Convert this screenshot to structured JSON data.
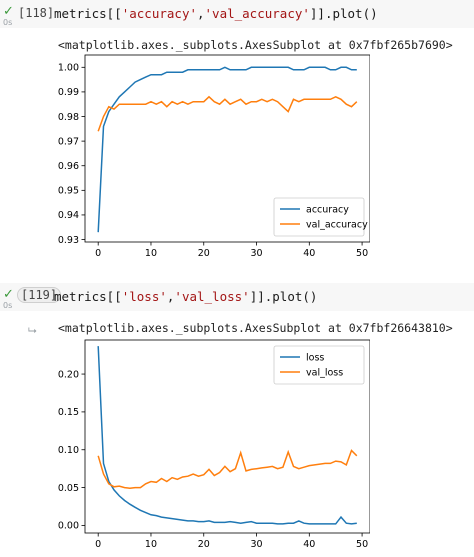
{
  "cells": [
    {
      "status_icon": "check-icon",
      "runtime": "0s",
      "exec_count": "[118]",
      "code_parts": [
        "metrics[[",
        "'accuracy'",
        ",",
        "'val_accuracy'",
        "]].plot()"
      ],
      "output_text": "<matplotlib.axes._subplots.AxesSubplot at 0x7fbf265b7690>"
    },
    {
      "status_icon": "check-icon",
      "runtime": "0s",
      "exec_count": "[119]",
      "code_parts": [
        "metrics[[",
        "'loss'",
        ",",
        "'val_loss'",
        "]].plot()"
      ],
      "output_icon": "output-arrow-icon",
      "output_text": "<matplotlib.axes._subplots.AxesSubplot at 0x7fbf26643810>"
    }
  ],
  "colors": {
    "series1": "#1f77b4",
    "series2": "#ff7f0e",
    "check": "#3c9a3c",
    "string": "#a31515"
  },
  "chart_data": [
    {
      "type": "line",
      "title": "",
      "xlabel": "",
      "ylabel": "",
      "xlim": [
        -2.5,
        51.5
      ],
      "ylim": [
        0.929,
        1.005
      ],
      "xticks": [
        0,
        10,
        20,
        30,
        40,
        50
      ],
      "yticks": [
        0.93,
        0.94,
        0.95,
        0.96,
        0.97,
        0.98,
        0.99,
        1.0
      ],
      "ytick_labels": [
        "0.93",
        "0.94",
        "0.95",
        "0.96",
        "0.97",
        "0.98",
        "0.99",
        "1.00"
      ],
      "grid": false,
      "legend_position": "lower-right",
      "x": [
        0,
        1,
        2,
        3,
        4,
        5,
        6,
        7,
        8,
        9,
        10,
        11,
        12,
        13,
        14,
        15,
        16,
        17,
        18,
        19,
        20,
        21,
        22,
        23,
        24,
        25,
        26,
        27,
        28,
        29,
        30,
        31,
        32,
        33,
        34,
        35,
        36,
        37,
        38,
        39,
        40,
        41,
        42,
        43,
        44,
        45,
        46,
        47,
        48,
        49
      ],
      "series": [
        {
          "name": "accuracy",
          "color": "#1f77b4",
          "values": [
            0.933,
            0.976,
            0.982,
            0.985,
            0.988,
            0.99,
            0.992,
            0.994,
            0.995,
            0.996,
            0.997,
            0.997,
            0.997,
            0.998,
            0.998,
            0.998,
            0.998,
            0.999,
            0.999,
            0.999,
            0.999,
            0.999,
            0.999,
            0.999,
            1.0,
            0.999,
            0.999,
            0.999,
            0.999,
            1.0,
            1.0,
            1.0,
            1.0,
            1.0,
            1.0,
            1.0,
            1.0,
            0.999,
            0.999,
            0.999,
            1.0,
            1.0,
            1.0,
            1.0,
            0.999,
            0.999,
            1.0,
            1.0,
            0.999,
            0.999
          ]
        },
        {
          "name": "val_accuracy",
          "color": "#ff7f0e",
          "values": [
            0.974,
            0.98,
            0.984,
            0.983,
            0.985,
            0.985,
            0.985,
            0.985,
            0.985,
            0.985,
            0.986,
            0.985,
            0.986,
            0.984,
            0.986,
            0.985,
            0.986,
            0.985,
            0.986,
            0.986,
            0.986,
            0.988,
            0.986,
            0.985,
            0.987,
            0.985,
            0.986,
            0.987,
            0.985,
            0.986,
            0.986,
            0.987,
            0.986,
            0.987,
            0.986,
            0.984,
            0.982,
            0.987,
            0.986,
            0.987,
            0.987,
            0.987,
            0.987,
            0.987,
            0.987,
            0.988,
            0.987,
            0.985,
            0.984,
            0.986
          ]
        }
      ]
    },
    {
      "type": "line",
      "title": "",
      "xlabel": "",
      "ylabel": "",
      "xlim": [
        -2.5,
        51.5
      ],
      "ylim": [
        -0.01,
        0.245
      ],
      "xticks": [
        0,
        10,
        20,
        30,
        40,
        50
      ],
      "yticks": [
        0.0,
        0.05,
        0.1,
        0.15,
        0.2
      ],
      "ytick_labels": [
        "0.00",
        "0.05",
        "0.10",
        "0.15",
        "0.20"
      ],
      "grid": false,
      "legend_position": "top-right",
      "x": [
        0,
        1,
        2,
        3,
        4,
        5,
        6,
        7,
        8,
        9,
        10,
        11,
        12,
        13,
        14,
        15,
        16,
        17,
        18,
        19,
        20,
        21,
        22,
        23,
        24,
        25,
        26,
        27,
        28,
        29,
        30,
        31,
        32,
        33,
        34,
        35,
        36,
        37,
        38,
        39,
        40,
        41,
        42,
        43,
        44,
        45,
        46,
        47,
        48,
        49
      ],
      "series": [
        {
          "name": "loss",
          "color": "#1f77b4",
          "values": [
            0.237,
            0.082,
            0.058,
            0.047,
            0.039,
            0.033,
            0.028,
            0.024,
            0.02,
            0.017,
            0.014,
            0.013,
            0.011,
            0.01,
            0.009,
            0.008,
            0.007,
            0.006,
            0.006,
            0.005,
            0.005,
            0.006,
            0.004,
            0.004,
            0.004,
            0.005,
            0.004,
            0.003,
            0.004,
            0.005,
            0.003,
            0.003,
            0.003,
            0.003,
            0.002,
            0.002,
            0.003,
            0.003,
            0.006,
            0.003,
            0.002,
            0.002,
            0.002,
            0.002,
            0.002,
            0.002,
            0.011,
            0.003,
            0.002,
            0.003
          ]
        },
        {
          "name": "val_loss",
          "color": "#ff7f0e",
          "values": [
            0.092,
            0.068,
            0.055,
            0.051,
            0.052,
            0.05,
            0.049,
            0.05,
            0.05,
            0.055,
            0.058,
            0.057,
            0.062,
            0.058,
            0.063,
            0.061,
            0.064,
            0.065,
            0.068,
            0.065,
            0.067,
            0.074,
            0.066,
            0.07,
            0.078,
            0.071,
            0.075,
            0.096,
            0.072,
            0.074,
            0.075,
            0.076,
            0.077,
            0.078,
            0.075,
            0.077,
            0.097,
            0.078,
            0.075,
            0.077,
            0.079,
            0.08,
            0.081,
            0.082,
            0.082,
            0.085,
            0.084,
            0.08,
            0.099,
            0.092
          ]
        }
      ]
    }
  ]
}
